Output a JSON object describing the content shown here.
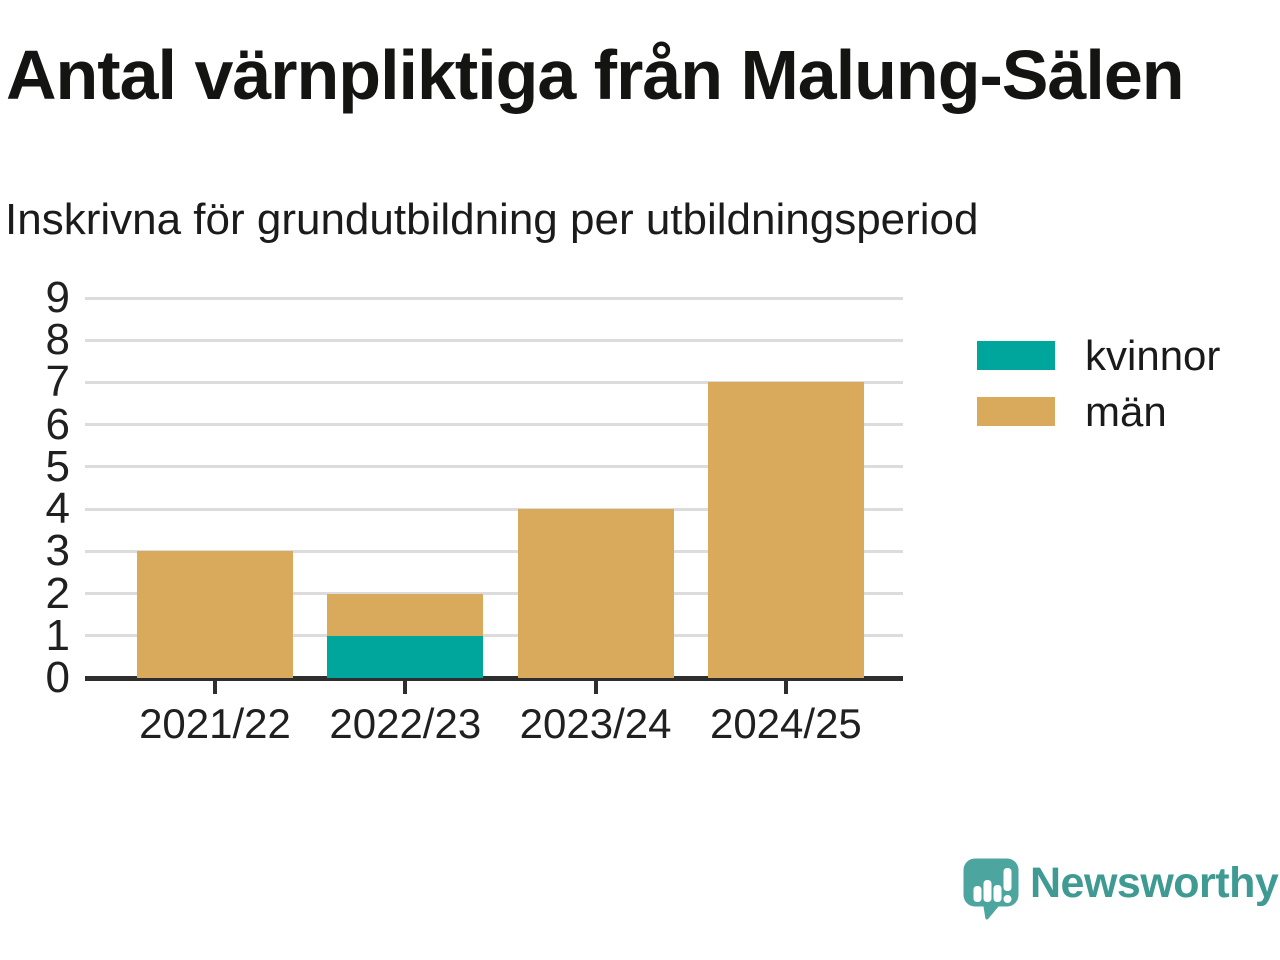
{
  "chart_data": {
    "type": "bar",
    "stacked": true,
    "title": "Antal värnpliktiga från Malung-Sälen",
    "subtitle": "Inskrivna för grundutbildning per utbildningsperiod",
    "categories": [
      "2021/22",
      "2022/23",
      "2023/24",
      "2024/25"
    ],
    "series": [
      {
        "name": "kvinnor",
        "color": "#00A69B",
        "values": [
          0,
          1,
          0,
          0
        ]
      },
      {
        "name": "män",
        "color": "#D9A95C",
        "values": [
          3,
          1,
          4,
          7
        ]
      }
    ],
    "ylim": [
      0,
      9
    ],
    "yticks": [
      0,
      1,
      2,
      3,
      4,
      5,
      6,
      7,
      8,
      9
    ],
    "grid": true,
    "legend_position": "right-top",
    "axis_color": "#2E2E2E",
    "gridline_color": "#DCDCDC",
    "label_color": "#202020"
  },
  "branding": {
    "wordmark": "Newsworthy",
    "brand_color": "#3E9A93",
    "logo_color": "#4CA69F",
    "logo_icon": "speech-bubble-bar-chart-icon"
  }
}
